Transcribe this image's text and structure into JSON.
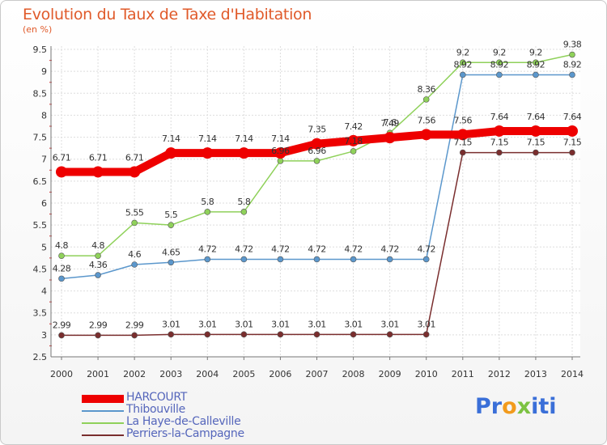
{
  "title": "Evolution du Taux de Taxe d'Habitation",
  "subtitle": "(en %)",
  "logo": {
    "letters": [
      "P",
      "r",
      "o",
      "x",
      "i",
      "t",
      "i"
    ],
    "colors": [
      "#3a6fd8",
      "#3a6fd8",
      "#f29b1d",
      "#7cc242",
      "#3a6fd8",
      "#3a6fd8",
      "#3a6fd8"
    ]
  },
  "chart_data": {
    "type": "line",
    "x": [
      2000,
      2001,
      2002,
      2003,
      2004,
      2005,
      2006,
      2007,
      2008,
      2009,
      2010,
      2011,
      2012,
      2013,
      2014
    ],
    "ylim": [
      2.5,
      9.5
    ],
    "yticks": [
      "2.5",
      "3",
      "3.5",
      "4",
      "4.5",
      "5",
      "5.5",
      "6",
      "6.5",
      "7",
      "7.5",
      "8",
      "8.5",
      "9",
      "9.5"
    ],
    "grid": true,
    "legend_position": "bottom-left",
    "series": [
      {
        "name": "HARCOURT",
        "color": "#ee0000",
        "values": [
          6.71,
          6.71,
          6.71,
          7.14,
          7.14,
          7.14,
          7.14,
          7.35,
          7.42,
          7.49,
          7.56,
          7.56,
          7.64,
          7.64,
          7.64
        ],
        "labels": [
          "6.71",
          "6.71",
          "6.71",
          "7.14",
          "7.14",
          "7.14",
          "7.14",
          "7.35",
          "7.42",
          "7.49",
          "7.56",
          "7.56",
          "7.64",
          "7.64",
          "7.64"
        ]
      },
      {
        "name": "Thibouville",
        "color": "#5b97cc",
        "values": [
          4.28,
          4.36,
          4.6,
          4.65,
          4.72,
          4.72,
          4.72,
          4.72,
          4.72,
          4.72,
          4.72,
          8.92,
          8.92,
          8.92,
          8.92
        ],
        "labels": [
          "4.28",
          "4.36",
          "4.6",
          "4.65",
          "4.72",
          "4.72",
          "4.72",
          "4.72",
          "4.72",
          "4.72",
          "4.72",
          "8.92",
          "8.92",
          "8.92",
          "8.92"
        ]
      },
      {
        "name": "La Haye-de-Calleville",
        "color": "#8fd15a",
        "values": [
          4.8,
          4.8,
          5.55,
          5.5,
          5.8,
          5.8,
          6.96,
          6.96,
          7.18,
          7.6,
          8.36,
          9.2,
          9.2,
          9.2,
          9.38
        ],
        "labels": [
          "4.8",
          "4.8",
          "5.55",
          "5.5",
          "5.8",
          "5.8",
          "6.96",
          "6.96",
          "7.18",
          "7.6",
          "8.36",
          "9.2",
          "9.2",
          "9.2",
          "9.38"
        ]
      },
      {
        "name": "Perriers-la-Campagne",
        "color": "#7a2e2e",
        "values": [
          2.99,
          2.99,
          2.99,
          3.01,
          3.01,
          3.01,
          3.01,
          3.01,
          3.01,
          3.01,
          3.01,
          7.15,
          7.15,
          7.15,
          7.15
        ],
        "labels": [
          "2.99",
          "2.99",
          "2.99",
          "3.01",
          "3.01",
          "3.01",
          "3.01",
          "3.01",
          "3.01",
          "3.01",
          "3.01",
          "7.15",
          "7.15",
          "7.15",
          "7.15"
        ]
      }
    ]
  }
}
